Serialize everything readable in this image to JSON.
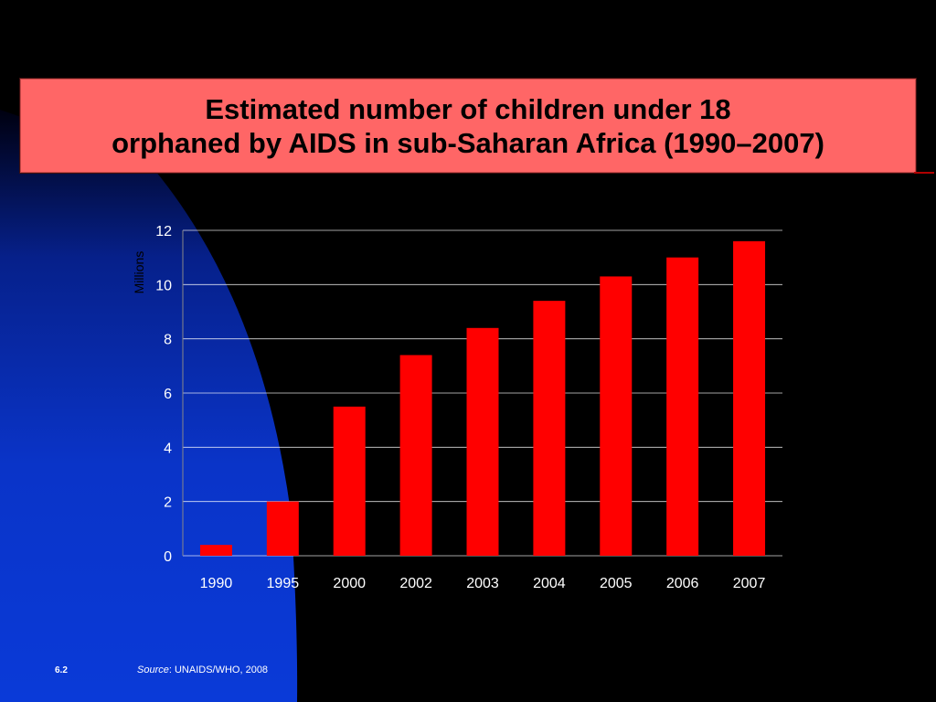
{
  "slide": {
    "title_line1": "Estimated number of children under 18",
    "title_line2": "orphaned by AIDS in sub-Saharan Africa (1990–2007)",
    "slide_number": "6.2",
    "source_label": "Source",
    "source_text": ": UNAIDS/WHO, 2008"
  },
  "colors": {
    "background": "#000000",
    "accent_blue": "#0a2fd0",
    "title_box": "#ff6666",
    "bar": "#ff0000",
    "grid": "#ffffff"
  },
  "chart_data": {
    "type": "bar",
    "title": "Estimated number of children under 18 orphaned by AIDS in sub-Saharan Africa (1990–2007)",
    "xlabel": "",
    "ylabel": "Millions",
    "categories": [
      "1990",
      "1995",
      "2000",
      "2002",
      "2003",
      "2004",
      "2005",
      "2006",
      "2007"
    ],
    "series": [
      {
        "values": [
          0.4,
          2.0,
          5.5,
          7.4,
          8.4,
          9.4,
          10.3,
          11.0,
          11.6
        ]
      }
    ],
    "ylim": [
      0,
      12
    ],
    "yticks": [
      "0",
      "2",
      "4",
      "6",
      "8",
      "10",
      "12"
    ],
    "grid": true,
    "legend": "none"
  }
}
